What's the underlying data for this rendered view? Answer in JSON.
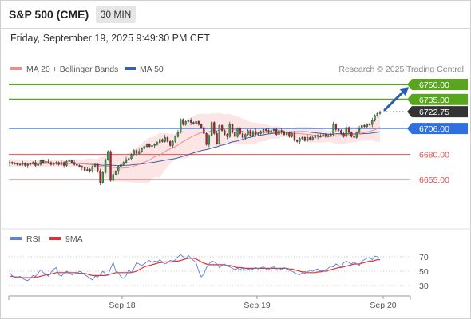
{
  "header": {
    "instrument": "S&P 500 (CME)",
    "timeframe": "30 MIN",
    "datetime": "Friday, September 19, 2025 9:49:30 PM CET"
  },
  "legend": {
    "ma20_label": "MA 20 + Bollinger Bands",
    "ma50_label": "MA 50",
    "credit": "Research © 2025 Trading Central"
  },
  "colors": {
    "up": "#3aa04a",
    "down": "#b22222",
    "ma20": "#f28b8b",
    "bands": "#fbe0e0",
    "ma50": "#3b5fa8",
    "resistance": "#5aa51e",
    "pivot": "#2f6fe0",
    "support": "#e05050",
    "last": "#333333",
    "arrow": "#2a5db0",
    "rsi": "#5b82d8",
    "rsi_ma": "#e03030"
  },
  "chart_data": [
    {
      "type": "candlestick",
      "title": "S&P 500 (CME)",
      "interval": "30 MIN",
      "x_axis": {
        "labels": [
          "Sep 18",
          "Sep 19",
          "Sep 20"
        ]
      },
      "y_range": [
        6630,
        6765
      ],
      "levels": [
        {
          "name": "resistance-2",
          "value": 6750.0,
          "label": "6750.00",
          "kind": "resistance"
        },
        {
          "name": "resistance-1",
          "value": 6735.0,
          "label": "6735.00",
          "kind": "resistance"
        },
        {
          "name": "last-price",
          "value": 6722.75,
          "label": "6722.75",
          "kind": "last"
        },
        {
          "name": "pivot",
          "value": 6706.0,
          "label": "6706.00",
          "kind": "pivot"
        },
        {
          "name": "support-1",
          "value": 6680.0,
          "label": "6680.00",
          "kind": "support"
        },
        {
          "name": "support-2",
          "value": 6655.0,
          "label": "6655.00",
          "kind": "support"
        }
      ],
      "closes": [
        6672,
        6671,
        6671,
        6670,
        6670,
        6671,
        6669,
        6670,
        6671,
        6672,
        6669,
        6670,
        6674,
        6672,
        6673,
        6672,
        6670,
        6671,
        6672,
        6670,
        6672,
        6669,
        6673,
        6674,
        6672,
        6670,
        6669,
        6668,
        6667,
        6664,
        6665,
        6663,
        6668,
        6670,
        6663,
        6652,
        6662,
        6675,
        6683,
        6654,
        6660,
        6663,
        6668,
        6670,
        6672,
        6675,
        6676,
        6680,
        6684,
        6681,
        6683,
        6686,
        6688,
        6690,
        6688,
        6689,
        6690,
        6692,
        6695,
        6693,
        6697,
        6693,
        6689,
        6693,
        6698,
        6702,
        6715,
        6710,
        6713,
        6714,
        6712,
        6711,
        6713,
        6710,
        6707,
        6701,
        6690,
        6699,
        6712,
        6701,
        6691,
        6709,
        6704,
        6700,
        6698,
        6710,
        6702,
        6698,
        6706,
        6701,
        6697,
        6700,
        6704,
        6699,
        6703,
        6700,
        6701,
        6703,
        6705,
        6704,
        6702,
        6704,
        6705,
        6700,
        6704,
        6703,
        6700,
        6702,
        6698,
        6701,
        6694,
        6693,
        6696,
        6697,
        6694,
        6697,
        6695,
        6697,
        6699,
        6698,
        6698,
        6700,
        6698,
        6699,
        6700,
        6710,
        6705,
        6704,
        6701,
        6698,
        6707,
        6702,
        6698,
        6697,
        6702,
        6706,
        6709,
        6708,
        6710,
        6710,
        6714,
        6719,
        6721,
        6722.75
      ],
      "overlays": [
        {
          "name": "MA 20 + Bollinger Bands",
          "kind": "ma_bands",
          "period": 20
        },
        {
          "name": "MA 50",
          "kind": "ma",
          "period": 50
        }
      ],
      "annotation": {
        "type": "arrow",
        "from": 6723,
        "to": 6749,
        "direction": "up"
      }
    },
    {
      "type": "line",
      "title": "RSI",
      "legend": [
        "RSI",
        "9MA"
      ],
      "y_ticks": [
        70,
        50,
        30
      ],
      "y_range": [
        20,
        80
      ],
      "series": [
        {
          "name": "RSI",
          "values": [
            48,
            44,
            41,
            41,
            43,
            40,
            38,
            37,
            40,
            44,
            43,
            47,
            52,
            48,
            46,
            43,
            48,
            53,
            55,
            45,
            43,
            47,
            50,
            48,
            45,
            46,
            47,
            50,
            48,
            45,
            43,
            40,
            38,
            43,
            42,
            45,
            50,
            46,
            44,
            54,
            62,
            50,
            48,
            42,
            40,
            44,
            52,
            48,
            54,
            62,
            60,
            58,
            60,
            63,
            65,
            62,
            64,
            63,
            66,
            63,
            60,
            62,
            65,
            64,
            66,
            70,
            73,
            70,
            67,
            72,
            68,
            65,
            62,
            50,
            42,
            46,
            55,
            60,
            64,
            63,
            60,
            55,
            58,
            60,
            57,
            56,
            54,
            52,
            54,
            52,
            55,
            51,
            53,
            52,
            53,
            55,
            53,
            55,
            56,
            53,
            52,
            55,
            56,
            53,
            54,
            52,
            55,
            53,
            51,
            50,
            48,
            46,
            45,
            48,
            47,
            49,
            51,
            50,
            52,
            53,
            50,
            51,
            52,
            54,
            57,
            56,
            60,
            58,
            55,
            62,
            64,
            62,
            60,
            63,
            60,
            58,
            64,
            66,
            68,
            69,
            66,
            71,
            70,
            68
          ]
        },
        {
          "name": "9MA",
          "values": [
            43,
            43,
            42,
            42,
            42,
            41,
            41,
            41,
            41,
            41,
            42,
            42,
            43,
            44,
            45,
            45,
            46,
            47,
            48,
            48,
            48,
            48,
            48,
            48,
            48,
            48,
            48,
            47,
            47,
            47,
            46,
            45,
            44,
            44,
            44,
            44,
            44,
            44,
            45,
            46,
            47,
            48,
            48,
            48,
            48,
            48,
            48,
            48,
            49,
            50,
            52,
            54,
            56,
            57,
            58,
            59,
            60,
            61,
            62,
            62,
            63,
            63,
            63,
            63,
            64,
            64,
            65,
            66,
            67,
            68,
            68,
            68,
            67,
            65,
            63,
            61,
            60,
            59,
            59,
            59,
            59,
            59,
            59,
            59,
            58,
            58,
            57,
            56,
            55,
            55,
            55,
            54,
            54,
            54,
            54,
            54,
            54,
            54,
            54,
            54,
            54,
            54,
            54,
            54,
            54,
            54,
            54,
            54,
            53,
            53,
            52,
            51,
            50,
            49,
            49,
            48,
            48,
            48,
            48,
            49,
            49,
            50,
            50,
            51,
            52,
            53,
            54,
            55,
            55,
            56,
            57,
            58,
            59,
            60,
            60,
            60,
            61,
            62,
            63,
            64,
            64,
            65,
            66,
            66
          ]
        }
      ]
    }
  ]
}
